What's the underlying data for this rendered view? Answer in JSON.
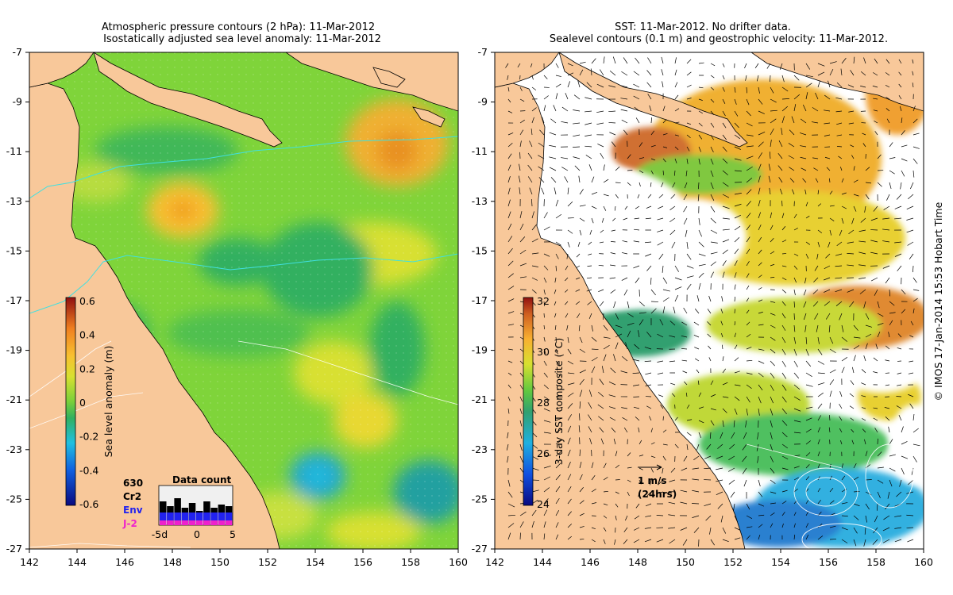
{
  "left_panel": {
    "title_line1": "Atmospheric pressure contours (2 hPa): 11-Mar-2012",
    "title_line2": "Isostatically adjusted sea level anomaly: 11-Mar-2012",
    "colorbar": {
      "label": "Sea level anomaly (m)",
      "ticks": [
        "0.6",
        "0.4",
        "0.2",
        "0",
        "-0.2",
        "-0.4",
        "-0.6"
      ]
    },
    "data_count": {
      "title": "Data count",
      "count": "630",
      "legend": [
        {
          "label": "Cr2",
          "color": "#000000"
        },
        {
          "label": "Env",
          "color": "#2222ee"
        },
        {
          "label": "J-2",
          "color": "#ee22cc"
        }
      ],
      "xticks": [
        "-5d",
        "0",
        "5"
      ]
    }
  },
  "right_panel": {
    "title_line1": "SST: 11-Mar-2012. No drifter data.",
    "title_line2": "Sealevel contours (0.1 m) and geostrophic velocity: 11-Mar-2012.",
    "colorbar": {
      "label": "3-day SST composite (°C)",
      "ticks": [
        "32",
        "30",
        "28",
        "26",
        "24"
      ]
    },
    "velocity_scale": {
      "line1": "1 m/s",
      "line2": "(24hrs)"
    }
  },
  "axes": {
    "x_ticks": [
      "142",
      "144",
      "146",
      "148",
      "150",
      "152",
      "154",
      "156",
      "158",
      "160"
    ],
    "y_ticks": [
      "-7",
      "-9",
      "-11",
      "-13",
      "-15",
      "-17",
      "-19",
      "-21",
      "-23",
      "-25",
      "-27"
    ]
  },
  "credit": "© IMOS 17-Jan-2014 15:53 Hobart Time",
  "colors": {
    "land": "#f8c89a",
    "sla_base": "#7fd43a",
    "sst_base": "#ffffff"
  }
}
